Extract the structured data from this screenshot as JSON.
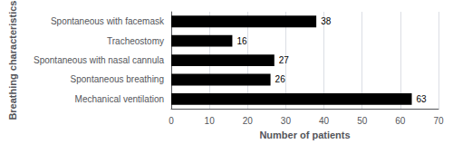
{
  "chart_data": {
    "type": "bar",
    "orientation": "horizontal",
    "categories": [
      "Spontaneous with facemask",
      "Tracheostomy",
      "Spontaneous with nasal cannula",
      "Spontaneous breathing",
      "Mechanical ventilation"
    ],
    "values": [
      38,
      16,
      27,
      26,
      63
    ],
    "color": "#000000",
    "xlabel": "Number of patients",
    "ylabel": "Breathing characteristics",
    "xlim": [
      0,
      70
    ],
    "xticks": [
      0,
      10,
      20,
      30,
      40,
      50,
      60,
      70
    ],
    "grid": true,
    "data_labels": true
  }
}
